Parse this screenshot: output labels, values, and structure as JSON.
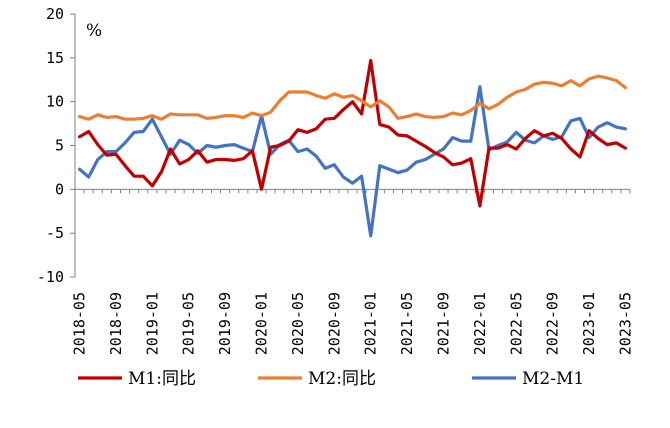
{
  "chart_data": {
    "type": "line",
    "unit_label": "%",
    "ylim": [
      -10,
      20
    ],
    "yticks": [
      -10,
      -5,
      0,
      5,
      10,
      15,
      20
    ],
    "grid": false,
    "x": [
      "2018-05",
      "2018-06",
      "2018-07",
      "2018-08",
      "2018-09",
      "2018-10",
      "2018-11",
      "2018-12",
      "2019-01",
      "2019-02",
      "2019-03",
      "2019-04",
      "2019-05",
      "2019-06",
      "2019-07",
      "2019-08",
      "2019-09",
      "2019-10",
      "2019-11",
      "2019-12",
      "2020-01",
      "2020-02",
      "2020-03",
      "2020-04",
      "2020-05",
      "2020-06",
      "2020-07",
      "2020-08",
      "2020-09",
      "2020-10",
      "2020-11",
      "2020-12",
      "2021-01",
      "2021-02",
      "2021-03",
      "2021-04",
      "2021-05",
      "2021-06",
      "2021-07",
      "2021-08",
      "2021-09",
      "2021-10",
      "2021-11",
      "2021-12",
      "2022-01",
      "2022-02",
      "2022-03",
      "2022-04",
      "2022-05",
      "2022-06",
      "2022-07",
      "2022-08",
      "2022-09",
      "2022-10",
      "2022-11",
      "2022-12",
      "2023-01",
      "2023-02",
      "2023-03",
      "2023-04",
      "2023-05"
    ],
    "xtick_labels": [
      "2018-05",
      "2018-09",
      "2019-01",
      "2019-05",
      "2019-09",
      "2020-01",
      "2020-05",
      "2020-09",
      "2021-01",
      "2021-05",
      "2021-09",
      "2022-01",
      "2022-05",
      "2022-09",
      "2023-01",
      "2023-05"
    ],
    "legend_position": "bottom",
    "series": [
      {
        "name": "M1:同比",
        "color": "#C00000",
        "values": [
          6.0,
          6.6,
          5.1,
          3.9,
          4.0,
          2.7,
          1.5,
          1.5,
          0.4,
          2.0,
          4.6,
          2.9,
          3.4,
          4.4,
          3.1,
          3.4,
          3.4,
          3.3,
          3.5,
          4.4,
          0.0,
          4.8,
          5.0,
          5.5,
          6.8,
          6.5,
          6.9,
          8.0,
          8.1,
          9.1,
          10.0,
          8.6,
          14.7,
          7.4,
          7.1,
          6.2,
          6.1,
          5.5,
          4.9,
          4.2,
          3.7,
          2.8,
          3.0,
          3.5,
          -1.9,
          4.7,
          4.7,
          5.1,
          4.6,
          5.8,
          6.7,
          6.1,
          6.4,
          5.8,
          4.6,
          3.7,
          6.7,
          5.8,
          5.1,
          5.3,
          4.7
        ]
      },
      {
        "name": "M2:同比",
        "color": "#ED7D31",
        "values": [
          8.3,
          8.0,
          8.5,
          8.2,
          8.3,
          8.0,
          8.0,
          8.1,
          8.4,
          8.0,
          8.6,
          8.5,
          8.5,
          8.5,
          8.1,
          8.2,
          8.4,
          8.4,
          8.2,
          8.7,
          8.4,
          8.8,
          10.1,
          11.1,
          11.1,
          11.1,
          10.7,
          10.4,
          10.9,
          10.5,
          10.7,
          10.1,
          9.4,
          10.1,
          9.4,
          8.1,
          8.3,
          8.6,
          8.3,
          8.2,
          8.3,
          8.7,
          8.5,
          9.0,
          9.8,
          9.2,
          9.7,
          10.5,
          11.1,
          11.4,
          12.0,
          12.2,
          12.1,
          11.8,
          12.4,
          11.8,
          12.6,
          12.9,
          12.7,
          12.4,
          11.6
        ]
      },
      {
        "name": "M2-M1",
        "color": "#4472C4",
        "values": [
          2.3,
          1.4,
          3.4,
          4.3,
          4.3,
          5.3,
          6.5,
          6.6,
          8.0,
          6.0,
          4.0,
          5.6,
          5.1,
          4.1,
          5.0,
          4.8,
          5.0,
          5.1,
          4.7,
          4.3,
          8.4,
          4.0,
          5.1,
          5.6,
          4.3,
          4.6,
          3.8,
          2.4,
          2.8,
          1.4,
          0.7,
          1.5,
          -5.3,
          2.7,
          2.3,
          1.9,
          2.2,
          3.1,
          3.4,
          4.0,
          4.6,
          5.9,
          5.5,
          5.5,
          11.7,
          4.5,
          5.0,
          5.4,
          6.5,
          5.6,
          5.3,
          6.1,
          5.7,
          6.0,
          7.8,
          8.1,
          5.9,
          7.1,
          7.6,
          7.1,
          6.9
        ]
      }
    ]
  }
}
